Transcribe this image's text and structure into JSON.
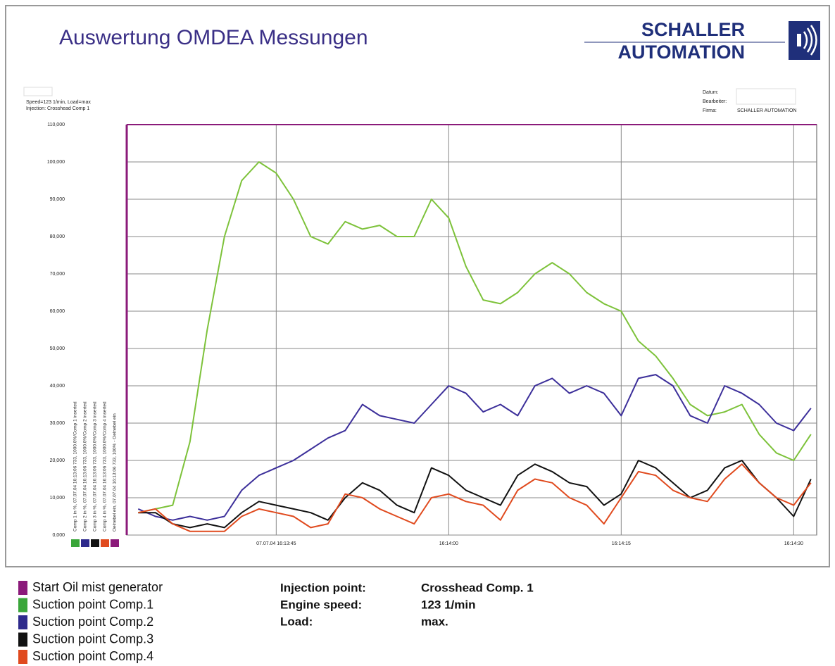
{
  "header": {
    "title": "Auswertung OMDEA Messungen",
    "logo": [
      "SCHALLER",
      "AUTOMATION"
    ],
    "info_left": [
      "Speed=123 1/min, Load=max",
      "Injection: Crosshead Comp 1"
    ],
    "info_right": [
      {
        "label": "Datum:"
      },
      {
        "label": "Bearbeiter:"
      },
      {
        "label": "Firma:",
        "value": "SCHALLER AUTOMATION"
      }
    ]
  },
  "chart_data": {
    "type": "line",
    "x": [
      58413,
      58414.5,
      58416,
      58417.5,
      58419,
      58420.5,
      58422,
      58423.5,
      58425,
      58426.5,
      58428,
      58429.5,
      58431,
      58432.5,
      58434,
      58435.5,
      58437,
      58438.5,
      58440,
      58441.5,
      58443,
      58444.5,
      58446,
      58447.5,
      58449,
      58450.5,
      58452,
      58453.5,
      58455,
      58456.5,
      58458,
      58459.5,
      58461,
      58462.5,
      58464,
      58465.5,
      58467,
      58468.5,
      58470,
      58471.5
    ],
    "series": [
      {
        "name": "Suction point Comp.1",
        "color": "#7dc23a",
        "legend_color": "#3aa63a",
        "note": "Comp 1 in %, 07.07.04 16:13:06 733, 1000.0%/Comp 1 inserted",
        "values": [
          6,
          7,
          8,
          25,
          55,
          80,
          95,
          100,
          97,
          90,
          80,
          78,
          84,
          82,
          83,
          80,
          80,
          90,
          85,
          72,
          63,
          62,
          65,
          70,
          73,
          70,
          65,
          62,
          60,
          52,
          48,
          42,
          35,
          32,
          33,
          35,
          27,
          22,
          20,
          27
        ]
      },
      {
        "name": "Suction point Comp.2",
        "color": "#3c2f9a",
        "legend_color": "#2e2a8c",
        "note": "Comp 2 in %, 07.07.04 16:13:06 733, 1000.0%/Comp 2 inserted",
        "values": [
          7,
          5,
          4,
          5,
          4,
          5,
          12,
          16,
          18,
          20,
          23,
          26,
          28,
          35,
          32,
          31,
          30,
          35,
          40,
          38,
          33,
          35,
          32,
          40,
          42,
          38,
          40,
          38,
          32,
          42,
          43,
          40,
          32,
          30,
          40,
          38,
          35,
          30,
          28,
          34
        ]
      },
      {
        "name": "Suction point Comp.3",
        "color": "#111111",
        "legend_color": "#111111",
        "note": "Comp 3 in %, 07.07.04 16:13:06 733, 1000.0%/Comp 3 inserted",
        "values": [
          6,
          6,
          3,
          2,
          3,
          2,
          6,
          9,
          8,
          7,
          6,
          4,
          10,
          14,
          12,
          8,
          6,
          18,
          16,
          12,
          10,
          8,
          16,
          19,
          17,
          14,
          13,
          8,
          11,
          20,
          18,
          14,
          10,
          12,
          18,
          20,
          14,
          10,
          5,
          15
        ]
      },
      {
        "name": "Suction point Comp.4",
        "color": "#e04a1e",
        "legend_color": "#e04a1e",
        "note": "Comp 4 in %, 07.07.04 16:13:06 733, 1000.0%/Comp 4 inserted",
        "values": [
          6,
          7,
          3,
          1,
          1,
          1,
          5,
          7,
          6,
          5,
          2,
          3,
          11,
          10,
          7,
          5,
          3,
          10,
          11,
          9,
          8,
          4,
          12,
          15,
          14,
          10,
          8,
          3,
          10,
          17,
          16,
          12,
          10,
          9,
          15,
          19,
          14,
          10,
          8,
          14
        ]
      }
    ],
    "start_marker": {
      "name": "Start Oil mist generator",
      "x": 58412,
      "color": "#8b1a7a",
      "note": "Oelnebel ein, 07.07.04 16:13:06 733, 100%  - Oelnebel ein"
    },
    "xlim": [
      58412,
      58472
    ],
    "xticks": [
      {
        "value": 58425,
        "label": "07.07.04 16:13:45"
      },
      {
        "value": 58440,
        "label": "16:14:00"
      },
      {
        "value": 58455,
        "label": "16:14:15"
      },
      {
        "value": 58470,
        "label": "16:14:30"
      }
    ],
    "ylim": [
      0,
      110
    ],
    "yticks": [
      {
        "value": 0,
        "label": "0,000"
      },
      {
        "value": 10,
        "label": "10,000"
      },
      {
        "value": 20,
        "label": "20,000"
      },
      {
        "value": 30,
        "label": "30,000"
      },
      {
        "value": 40,
        "label": "40,000"
      },
      {
        "value": 50,
        "label": "50,000"
      },
      {
        "value": 60,
        "label": "60,000"
      },
      {
        "value": 70,
        "label": "70,000"
      },
      {
        "value": 80,
        "label": "80,000"
      },
      {
        "value": 90,
        "label": "90,000"
      },
      {
        "value": 100,
        "label": "100,000"
      },
      {
        "value": 110,
        "label": "110,000"
      }
    ],
    "grid": true
  },
  "details": [
    {
      "label": "Injection point:",
      "value": "Crosshead Comp. 1"
    },
    {
      "label": "Engine speed:",
      "value": "123 1/min"
    },
    {
      "label": "Load:",
      "value": "max."
    }
  ]
}
